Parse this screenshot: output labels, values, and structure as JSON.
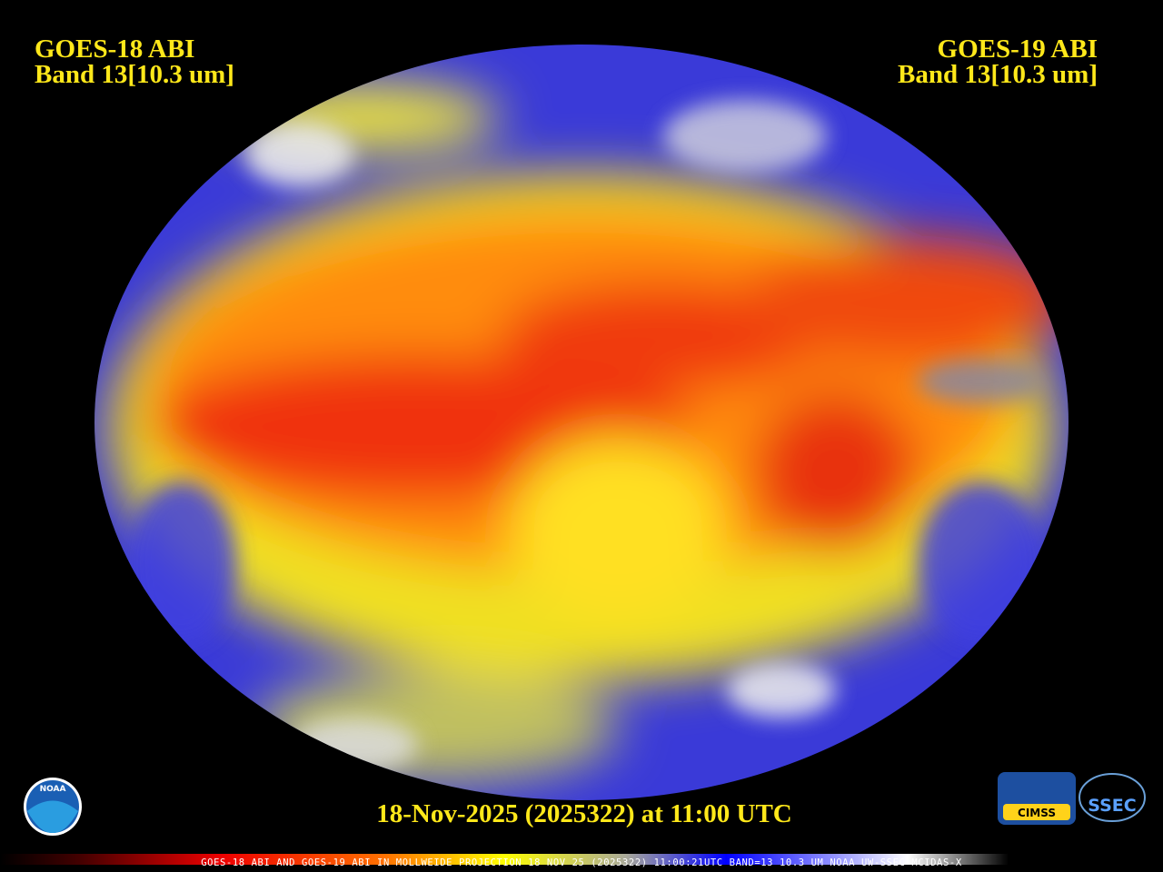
{
  "left_label": {
    "satellite": "GOES-18 ABI",
    "band": "Band 13[10.3 um]"
  },
  "right_label": {
    "satellite": "GOES-19 ABI",
    "band": "Band 13[10.3 um]"
  },
  "timestamp": "18-Nov-2025 (2025322) at 11:00 UTC",
  "footer": "GOES-18 ABI AND GOES-19 ABI IN MOLLWEIDE PROJECTION 18 NOV 25 (2025322) 11:00:21UTC BAND=13 10.3 UM NOAA UW-SSEC MCIDAS-X",
  "logos": {
    "noaa": "NOAA",
    "cimss": "CIMSS",
    "ssec": "SSEC"
  }
}
